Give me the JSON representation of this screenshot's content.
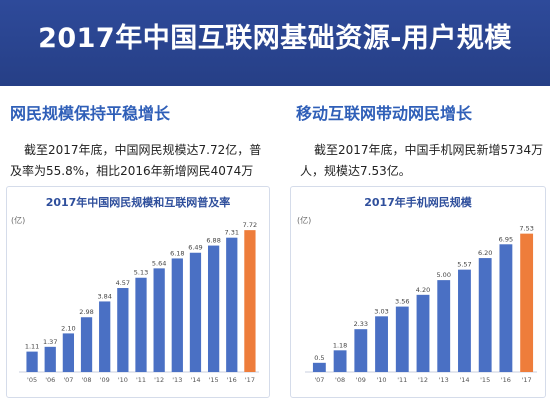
{
  "page": {
    "title": "2017年中国互联网基础资源-用户规模"
  },
  "left": {
    "heading": "网民规模保持平稳增长",
    "text_line1": "截至2017年底，中国网民规模达7.72亿，普",
    "text_line2": "及率为55.8%，相比2016年新增网民4074万人。"
  },
  "right": {
    "heading": "移动互联网带动网民增长",
    "text_line1": "截至2017年底，中国手机网民新增5734万",
    "text_line2": "人，规模达7.53亿。"
  },
  "colors": {
    "bar": "#4a70c4",
    "highlight": "#ee7d3b",
    "banner": "#2a4591"
  },
  "chart_data": [
    {
      "type": "bar",
      "title": "2017年中国网民规模和互联网普及率",
      "ylabel": "(亿)",
      "categories": [
        "'05",
        "'06",
        "'07",
        "'08",
        "'09",
        "'10",
        "'11",
        "'12",
        "'13",
        "'14",
        "'15",
        "'16",
        "'17"
      ],
      "values": [
        1.11,
        1.37,
        2.1,
        2.98,
        3.84,
        4.57,
        5.13,
        5.64,
        6.18,
        6.49,
        6.88,
        7.31,
        7.72
      ],
      "value_labels": [
        "1.11",
        "1.37",
        "2.10",
        "2.98",
        "3.84",
        "4.57",
        "5.13",
        "5.64",
        "6.18",
        "6.49",
        "6.88",
        "7.31",
        "7.72"
      ],
      "highlight_index": 12,
      "ylim": [
        0,
        8
      ]
    },
    {
      "type": "bar",
      "title": "2017年手机网民规模",
      "ylabel": "(亿)",
      "categories": [
        "'07",
        "'08",
        "'09",
        "'10",
        "'11",
        "'12",
        "'13",
        "'14",
        "'15",
        "'16",
        "'17"
      ],
      "values": [
        0.5,
        1.18,
        2.33,
        3.03,
        3.56,
        4.2,
        5.0,
        5.57,
        6.2,
        6.95,
        7.53
      ],
      "value_labels": [
        "0.5",
        "1.18",
        "2.33",
        "3.03",
        "3.56",
        "4.20",
        "5.00",
        "5.57",
        "6.20",
        "6.95",
        "7.53"
      ],
      "highlight_index": 10,
      "ylim": [
        0,
        8
      ]
    }
  ]
}
